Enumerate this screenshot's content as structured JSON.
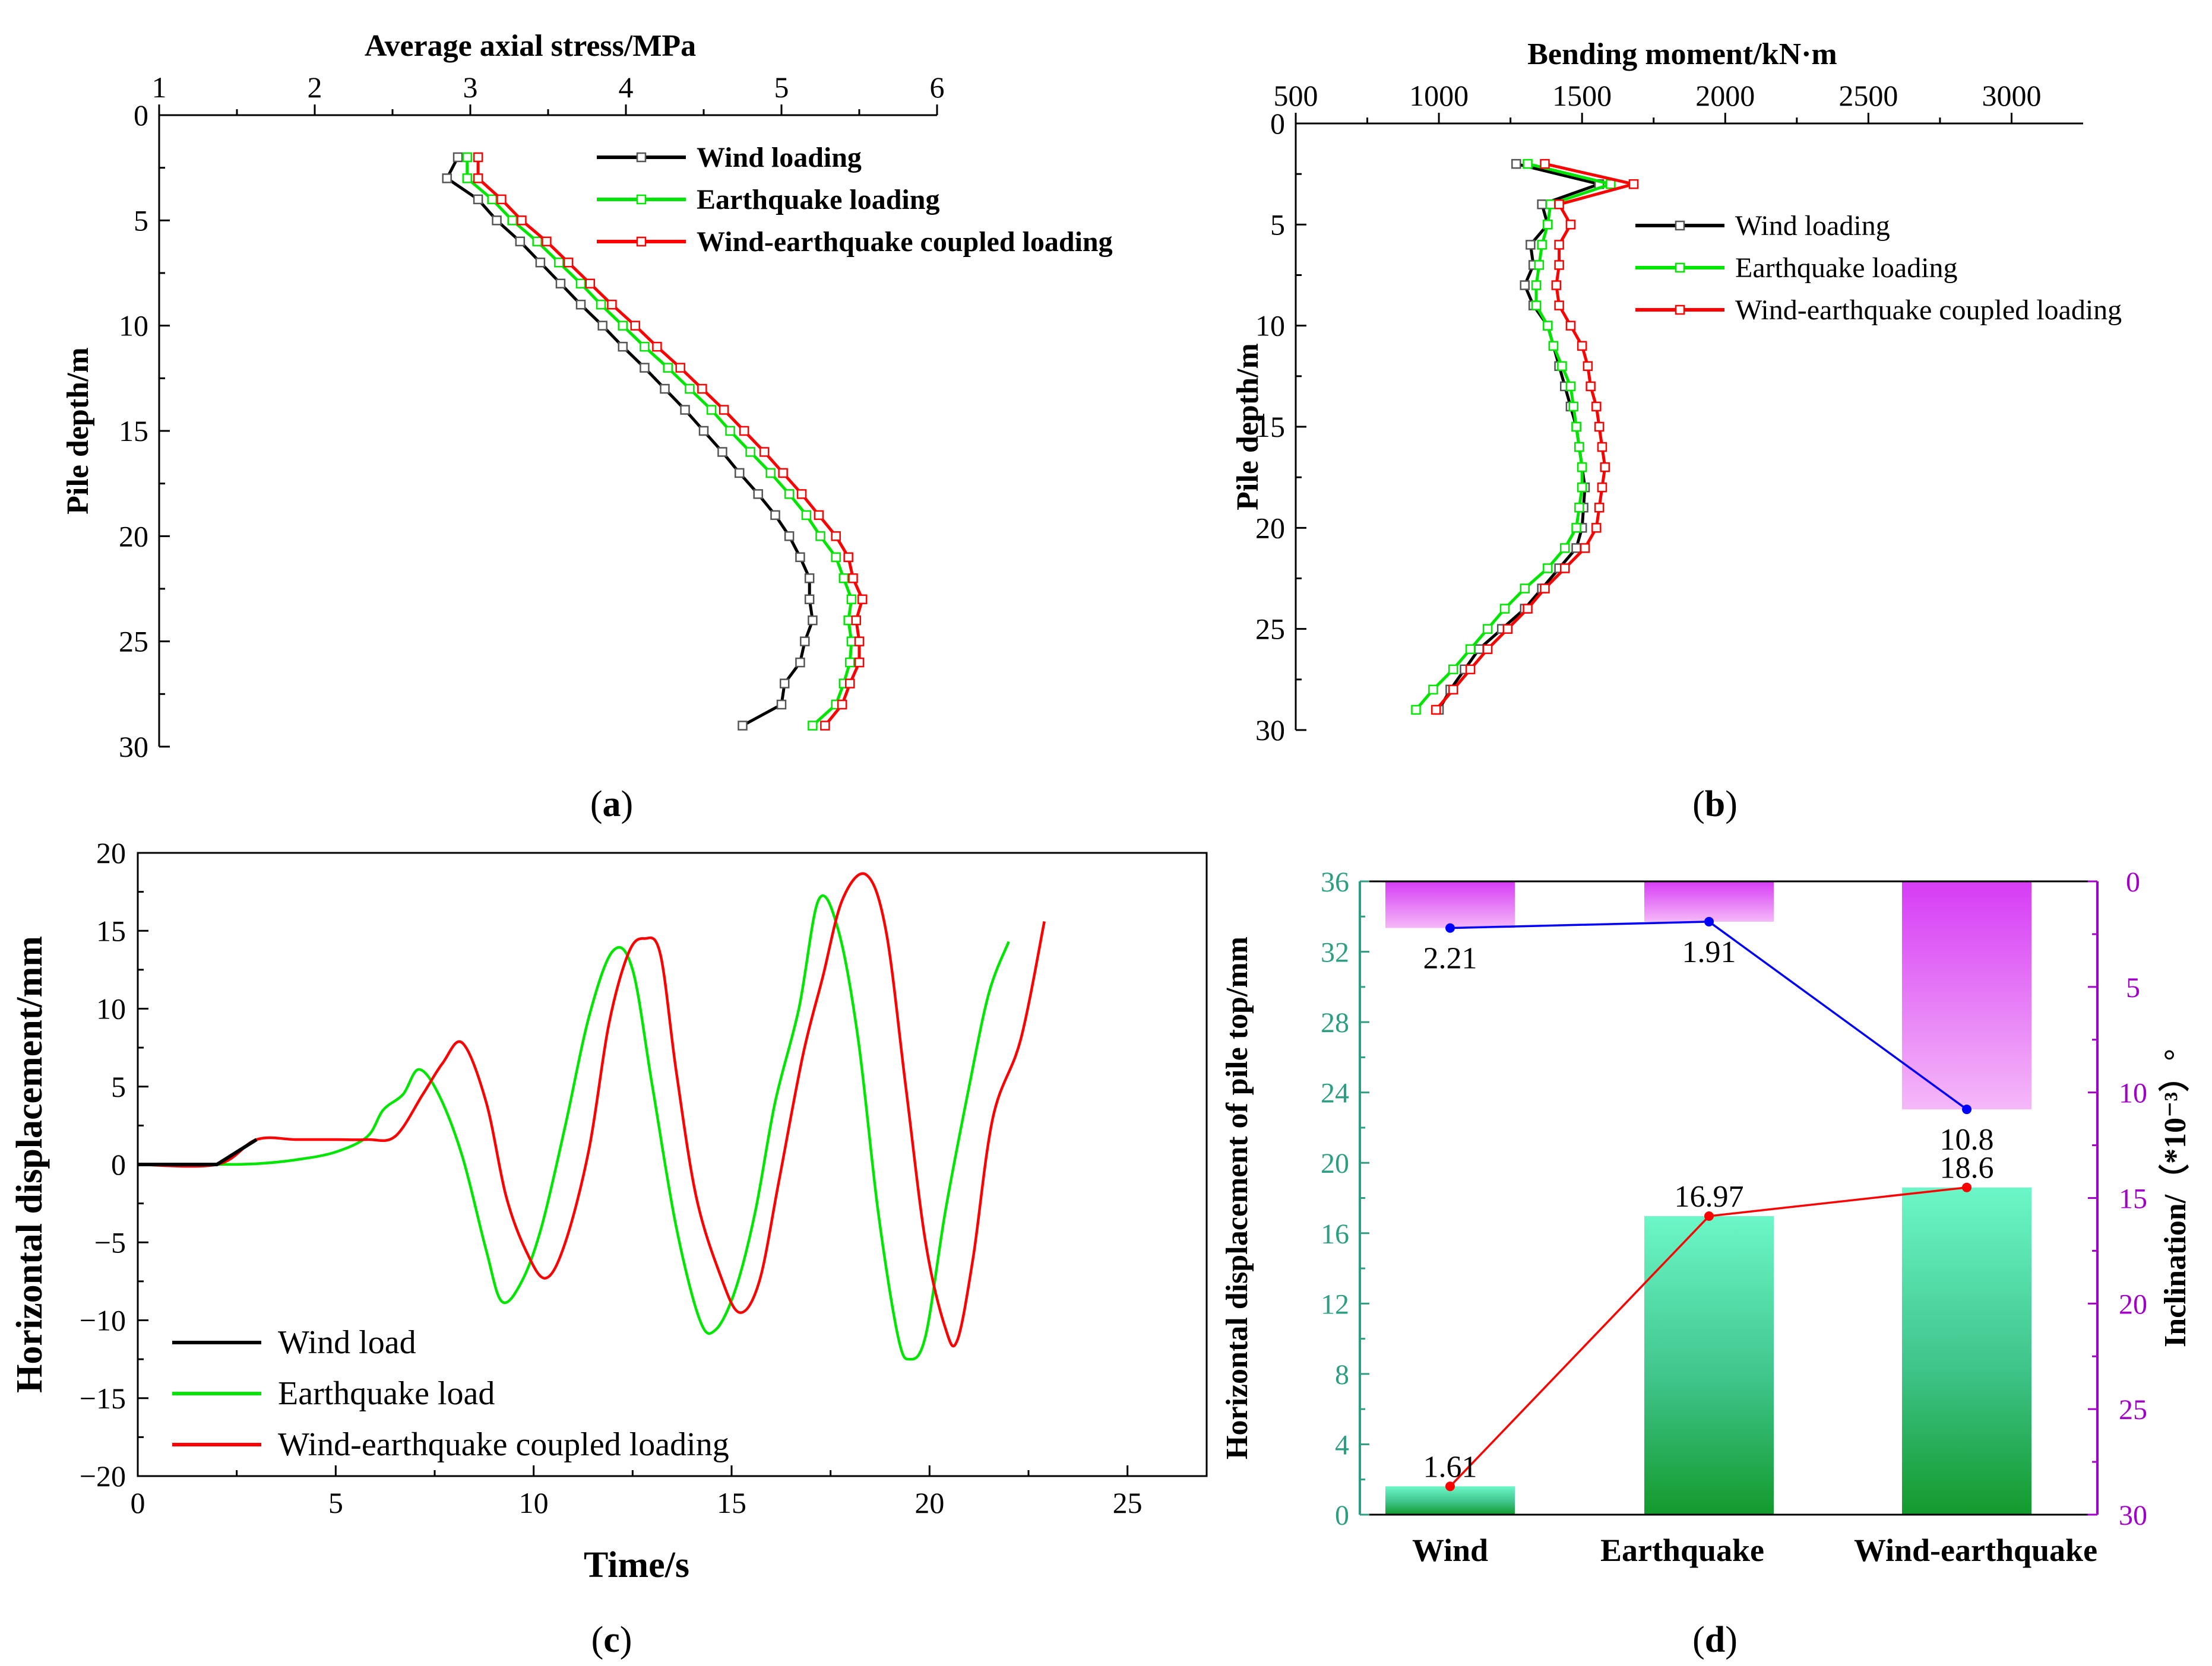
{
  "panel_labels": {
    "a": "(a)",
    "b": "(b)",
    "c": "(c)",
    "d": "(d)"
  },
  "colors": {
    "wind": "#000000",
    "earthquake": "#00e600",
    "coupled": "#ff0000",
    "inclination_line": "#0000ff",
    "teal_axis": "#2e9e82",
    "purple_axis": "#a000c8",
    "bar_green_top": "#6cf7c8",
    "bar_green_bottom": "#139a2c",
    "bar_purple_top": "#d63cf5",
    "bar_purple_bottom": "#f5b8f8"
  },
  "chart_data": [
    {
      "id": "a",
      "type": "line",
      "orientation": "depth-profile",
      "xlabel": "Average axial stress/MPa",
      "ylabel": "Pile depth/m",
      "xlim": [
        1,
        6
      ],
      "ylim": [
        0,
        30
      ],
      "xticks": [
        "1",
        "2",
        "3",
        "4",
        "5",
        "6"
      ],
      "yticks": [
        "0",
        "5",
        "10",
        "15",
        "20",
        "25",
        "30"
      ],
      "legend_position": "top-right",
      "depth": [
        2,
        3,
        4,
        5,
        6,
        7,
        8,
        9,
        10,
        11,
        12,
        13,
        14,
        15,
        16,
        17,
        18,
        19,
        20,
        21,
        22,
        23,
        24,
        25,
        26,
        27,
        28,
        29
      ],
      "series": [
        {
          "name": "Wind loading",
          "color": "#000000",
          "values": [
            2.92,
            2.85,
            3.05,
            3.17,
            3.32,
            3.45,
            3.58,
            3.71,
            3.85,
            3.98,
            4.12,
            4.25,
            4.38,
            4.5,
            4.62,
            4.73,
            4.85,
            4.96,
            5.05,
            5.12,
            5.18,
            5.18,
            5.2,
            5.15,
            5.12,
            5.02,
            5.0,
            4.75
          ]
        },
        {
          "name": "Earthquake loading",
          "color": "#00e600",
          "values": [
            2.98,
            2.98,
            3.14,
            3.27,
            3.43,
            3.57,
            3.71,
            3.84,
            3.98,
            4.12,
            4.27,
            4.41,
            4.55,
            4.67,
            4.8,
            4.93,
            5.05,
            5.16,
            5.25,
            5.35,
            5.4,
            5.45,
            5.43,
            5.45,
            5.44,
            5.4,
            5.35,
            5.2
          ]
        },
        {
          "name": "Wind-earthquake coupled loading",
          "color": "#ff0000",
          "values": [
            3.05,
            3.05,
            3.2,
            3.33,
            3.49,
            3.63,
            3.77,
            3.91,
            4.06,
            4.2,
            4.35,
            4.49,
            4.63,
            4.76,
            4.89,
            5.01,
            5.13,
            5.24,
            5.35,
            5.43,
            5.46,
            5.52,
            5.48,
            5.5,
            5.5,
            5.44,
            5.39,
            5.28
          ]
        }
      ]
    },
    {
      "id": "b",
      "type": "line",
      "orientation": "depth-profile",
      "xlabel": "Bending moment/kN·m",
      "ylabel": "Pile depth/m",
      "xlim": [
        500,
        3250
      ],
      "ylim": [
        0,
        30
      ],
      "xticks": [
        "500",
        "1000",
        "1500",
        "2000",
        "2500",
        "3000"
      ],
      "yticks": [
        "0",
        "5",
        "10",
        "15",
        "20",
        "25",
        "30"
      ],
      "legend_position": "top-right",
      "depth": [
        2,
        3,
        4,
        5,
        6,
        7,
        8,
        9,
        10,
        11,
        12,
        13,
        14,
        15,
        16,
        17,
        18,
        19,
        20,
        21,
        22,
        23,
        24,
        25,
        26,
        27,
        28,
        29
      ],
      "series": [
        {
          "name": "Wind loading",
          "color": "#000000",
          "values": [
            1270,
            1560,
            1360,
            1380,
            1320,
            1330,
            1300,
            1330,
            1380,
            1400,
            1420,
            1440,
            1460,
            1480,
            1490,
            1500,
            1510,
            1505,
            1500,
            1480,
            1420,
            1360,
            1300,
            1220,
            1140,
            1090,
            1040,
            1000
          ]
        },
        {
          "name": "Earthquake loading",
          "color": "#00e600",
          "values": [
            1310,
            1600,
            1390,
            1380,
            1360,
            1350,
            1340,
            1340,
            1380,
            1400,
            1430,
            1460,
            1470,
            1480,
            1490,
            1500,
            1500,
            1490,
            1480,
            1440,
            1380,
            1300,
            1230,
            1170,
            1110,
            1050,
            980,
            920
          ]
        },
        {
          "name": "Wind-earthquake coupled loading",
          "color": "#ff0000",
          "values": [
            1370,
            1680,
            1420,
            1460,
            1420,
            1420,
            1410,
            1420,
            1460,
            1500,
            1520,
            1530,
            1550,
            1560,
            1570,
            1580,
            1570,
            1560,
            1550,
            1510,
            1440,
            1370,
            1310,
            1240,
            1170,
            1110,
            1050,
            990
          ]
        }
      ]
    },
    {
      "id": "c",
      "type": "line",
      "xlabel": "Time/s",
      "ylabel": "Horizontal displacement/mm",
      "xlim": [
        0,
        27
      ],
      "ylim": [
        -20,
        20
      ],
      "xticks": [
        "0",
        "5",
        "10",
        "15",
        "20",
        "25"
      ],
      "yticks": [
        "−20",
        "−15",
        "−10",
        "−5",
        "0",
        "5",
        "10",
        "15",
        "20"
      ],
      "legend_position": "bottom-left",
      "series": [
        {
          "name": "Wind load",
          "color": "#000000",
          "x": [
            0,
            1,
            2,
            3
          ],
          "values": [
            0,
            0,
            0,
            1.6
          ]
        },
        {
          "name": "Earthquake load",
          "color": "#00e600",
          "x": [
            0,
            2,
            3,
            4,
            5,
            5.8,
            6.2,
            6.7,
            7.1,
            7.6,
            8.2,
            8.8,
            9.2,
            9.7,
            10.2,
            10.8,
            11.4,
            12.0,
            12.5,
            13.0,
            13.6,
            14.2,
            14.6,
            15.1,
            15.6,
            16.1,
            16.7,
            17.2,
            17.7,
            18.2,
            18.7,
            19.2,
            19.5,
            19.9,
            20.4,
            21.0,
            21.5,
            22.0
          ],
          "values": [
            0,
            0,
            0.05,
            0.3,
            0.8,
            1.8,
            3.5,
            4.5,
            6.1,
            4.5,
            0.5,
            -5.5,
            -8.8,
            -7.5,
            -4.0,
            2.5,
            9.5,
            13.7,
            12.5,
            5.0,
            -4.0,
            -10.0,
            -10.6,
            -8.0,
            -3.0,
            4.0,
            10.0,
            17.0,
            15.0,
            8.0,
            -3.0,
            -11.0,
            -12.5,
            -11.0,
            -3.0,
            5.0,
            11.0,
            14.3
          ]
        },
        {
          "name": "Wind-earthquake coupled loading",
          "color": "#ff0000",
          "x": [
            0,
            2,
            3,
            4,
            5,
            5.8,
            6.5,
            7.2,
            7.7,
            8.2,
            8.8,
            9.3,
            9.8,
            10.3,
            10.8,
            11.4,
            11.9,
            12.4,
            12.8,
            13.2,
            13.6,
            14.1,
            14.7,
            15.2,
            15.7,
            16.2,
            16.8,
            17.3,
            17.8,
            18.4,
            18.9,
            19.4,
            19.9,
            20.4,
            20.7,
            21.1,
            21.6,
            22.3,
            22.9
          ],
          "values": [
            0,
            0,
            1.6,
            1.6,
            1.6,
            1.6,
            1.8,
            4.5,
            6.5,
            7.8,
            4.0,
            -2.0,
            -5.5,
            -7.3,
            -5.0,
            1.0,
            9.0,
            13.6,
            14.5,
            13.5,
            6.0,
            -2.0,
            -7.0,
            -9.5,
            -7.5,
            -1.0,
            7.0,
            12.0,
            17.0,
            18.6,
            15.0,
            5.0,
            -5.0,
            -10.5,
            -11.3,
            -6.0,
            3.0,
            8.0,
            15.6
          ]
        }
      ]
    },
    {
      "id": "d",
      "type": "bar",
      "categories": [
        "Wind",
        "Earthquake",
        "Wind-earthquake"
      ],
      "ylabel": "Horizontal displacement of pile top/mm",
      "ylim": [
        0,
        36
      ],
      "yticks": [
        "0",
        "4",
        "8",
        "12",
        "16",
        "20",
        "24",
        "28",
        "32",
        "36"
      ],
      "y2label": "Inclination/（*10⁻³）°",
      "y2lim": [
        0,
        30
      ],
      "y2_inverted": true,
      "y2ticks": [
        "0",
        "5",
        "10",
        "15",
        "20",
        "25",
        "30"
      ],
      "series": [
        {
          "name": "Horizontal displacement",
          "axis": "left",
          "values": [
            1.61,
            16.97,
            18.6
          ],
          "labels": [
            "1.61",
            "16.97",
            "18.6"
          ]
        },
        {
          "name": "Inclination",
          "axis": "right",
          "values": [
            2.21,
            1.91,
            10.8
          ],
          "labels": [
            "2.21",
            "1.91",
            "10.8"
          ]
        }
      ]
    }
  ]
}
